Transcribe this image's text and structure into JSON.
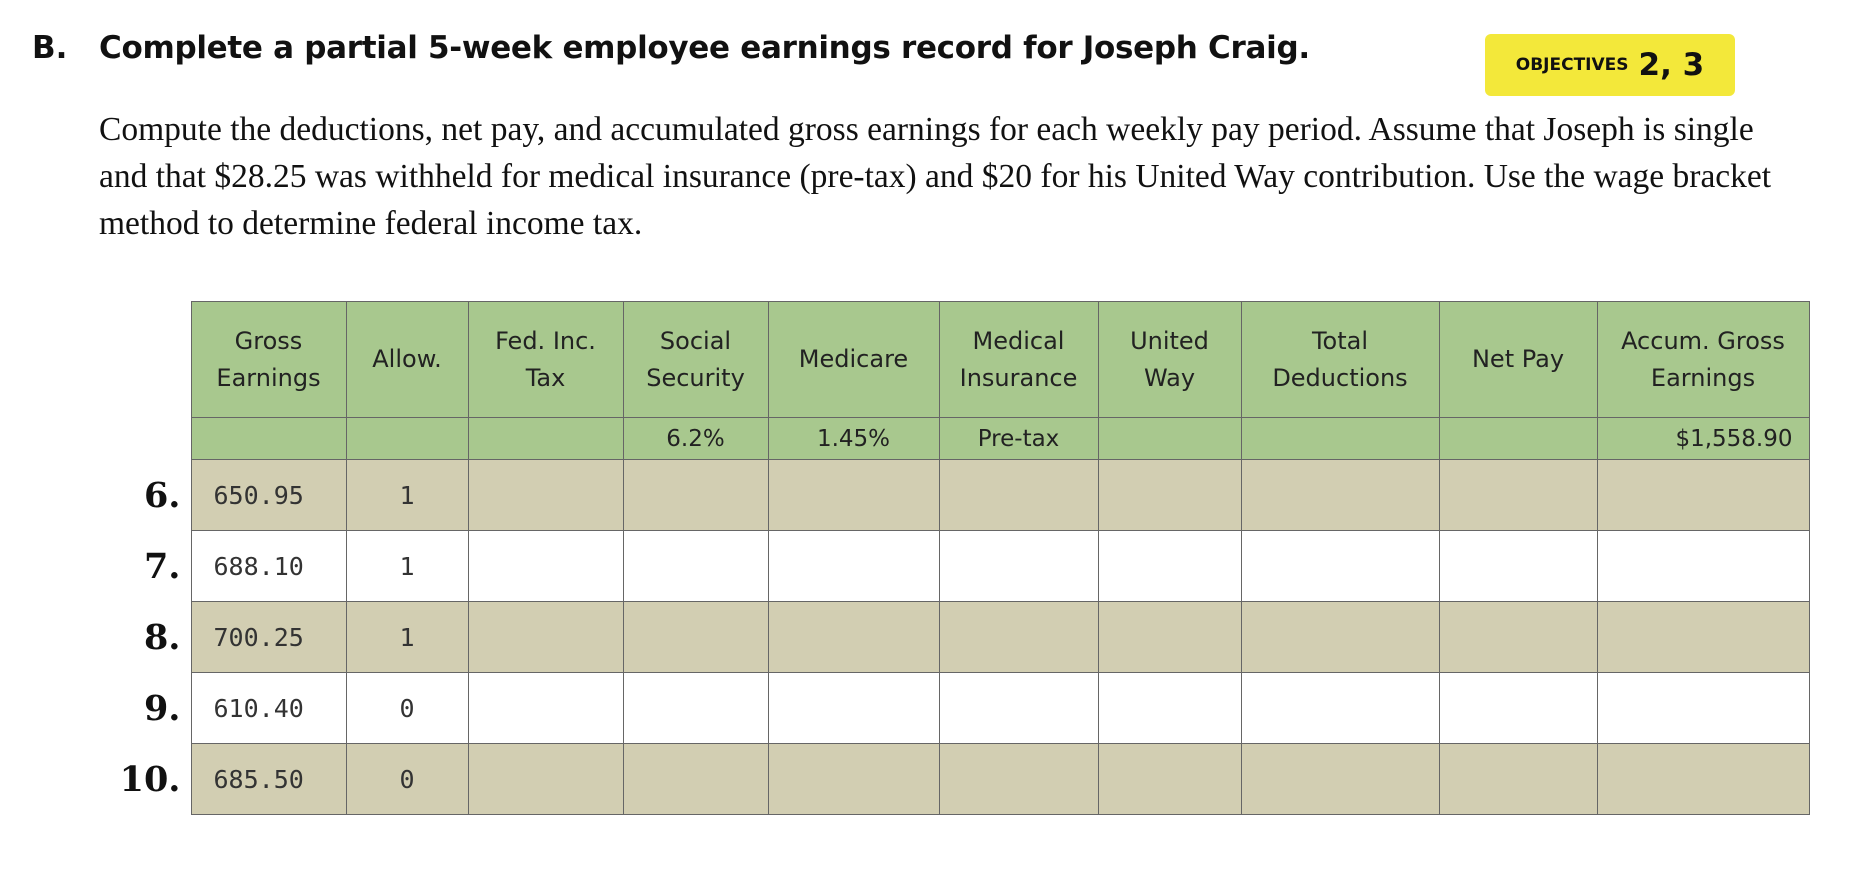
{
  "section": {
    "label": "B.",
    "title": "Complete a partial 5-week employee earnings record for Joseph Craig.",
    "objectives": {
      "label": "OBJECTIVES",
      "numbers": "2, 3"
    },
    "instructions": "Compute the deductions, net pay, and accumulated gross earnings for each weekly pay period. Assume that Joseph is single and that $28.25 was withheld for medical insurance (pre-tax) and $20 for his United Way contribution. Use the wage bracket method to determine federal income tax."
  },
  "table": {
    "headers": [
      "Gross\nEarnings",
      "Allow.",
      "Fed. Inc.\nTax",
      "Social\nSecurity",
      "Medicare",
      "Medical\nInsurance",
      "United\nWay",
      "Total\nDeductions",
      "Net Pay",
      "Accum. Gross\nEarnings"
    ],
    "rates": {
      "social_security": "6.2%",
      "medicare": "1.45%",
      "medical_insurance": "Pre-tax",
      "accum_gross_earnings": "$1,558.90"
    },
    "rows": [
      {
        "number": "6.",
        "gross_earnings": "650.95",
        "allowances": "1"
      },
      {
        "number": "7.",
        "gross_earnings": "688.10",
        "allowances": "1"
      },
      {
        "number": "8.",
        "gross_earnings": "700.25",
        "allowances": "1"
      },
      {
        "number": "9.",
        "gross_earnings": "610.40",
        "allowances": "0"
      },
      {
        "number": "10.",
        "gross_earnings": "685.50",
        "allowances": "0"
      }
    ]
  }
}
